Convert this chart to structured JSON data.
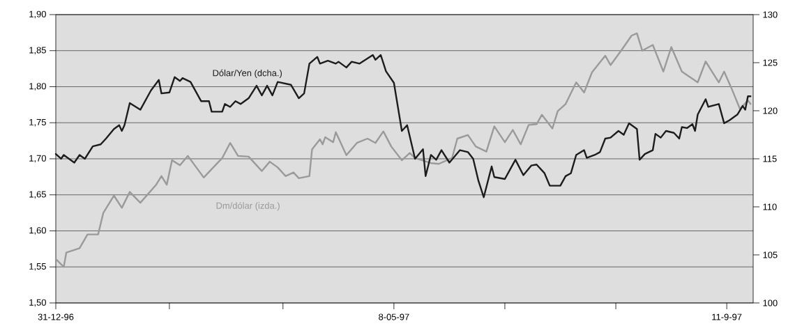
{
  "chart_data": {
    "type": "line",
    "xlim": [
      "1996-12-31",
      "1997-09-21"
    ],
    "xticks": [
      {
        "value": "1996-12-31",
        "label": "31-12-96"
      },
      {
        "value": "1997-02-12",
        "label": null
      },
      {
        "value": "1997-03-27",
        "label": null
      },
      {
        "value": "1997-05-08",
        "label": "8-05-97"
      },
      {
        "value": "1997-06-19",
        "label": null
      },
      {
        "value": "1997-07-31",
        "label": null
      },
      {
        "value": "1997-09-11",
        "label": "11-9-97"
      }
    ],
    "ylim": [
      1.5,
      1.9
    ],
    "yticks": [
      {
        "value": 1.5,
        "label": "1,50"
      },
      {
        "value": 1.55,
        "label": "1,55"
      },
      {
        "value": 1.6,
        "label": "1,60"
      },
      {
        "value": 1.65,
        "label": "1,65"
      },
      {
        "value": 1.7,
        "label": "1,70"
      },
      {
        "value": 1.75,
        "label": "1,75"
      },
      {
        "value": 1.8,
        "label": "1,80"
      },
      {
        "value": 1.85,
        "label": "1,85"
      },
      {
        "value": 1.9,
        "label": "1,90"
      }
    ],
    "y2lim": [
      100,
      130
    ],
    "y2ticks": [
      100,
      105,
      110,
      115,
      120,
      125,
      130
    ],
    "grid": "y",
    "line_style": "solid",
    "series": [
      {
        "name": "Dm/dólar (izda.)",
        "color": "#9a9a9a",
        "x": [
          "1996-12-31",
          "1997-01-03",
          "1997-01-04",
          "1997-01-09",
          "1997-01-12",
          "1997-01-16",
          "1997-01-18",
          "1997-01-22",
          "1997-01-25",
          "1997-01-28",
          "1997-02-01",
          "1997-02-07",
          "1997-02-09",
          "1997-02-11",
          "1997-02-13",
          "1997-02-16",
          "1997-02-19",
          "1997-02-25",
          "1997-03-04",
          "1997-03-07",
          "1997-03-10",
          "1997-03-14",
          "1997-03-19",
          "1997-03-22",
          "1997-03-25",
          "1997-03-28",
          "1997-03-31",
          "1997-04-02",
          "1997-04-06",
          "1997-04-07",
          "1997-04-10",
          "1997-04-11",
          "1997-04-12",
          "1997-04-15",
          "1997-04-16",
          "1997-04-20",
          "1997-04-24",
          "1997-04-28",
          "1997-05-01",
          "1997-05-04",
          "1997-05-07",
          "1997-05-11",
          "1997-05-14",
          "1997-05-16",
          "1997-05-22",
          "1997-05-25",
          "1997-05-30",
          "1997-06-01",
          "1997-06-05",
          "1997-06-08",
          "1997-06-12",
          "1997-06-15",
          "1997-06-19",
          "1997-06-22",
          "1997-06-25",
          "1997-06-28",
          "1997-07-01",
          "1997-07-03",
          "1997-07-07",
          "1997-07-09",
          "1997-07-12",
          "1997-07-16",
          "1997-07-19",
          "1997-07-22",
          "1997-07-27",
          "1997-07-29",
          "1997-08-02",
          "1997-08-06",
          "1997-08-08",
          "1997-08-10",
          "1997-08-14",
          "1997-08-18",
          "1997-08-21",
          "1997-08-25",
          "1997-08-31",
          "1997-09-03",
          "1997-09-08",
          "1997-09-10",
          "1997-09-13",
          "1997-09-16",
          "1997-09-19",
          "1997-09-20"
        ],
        "values": [
          1.561,
          1.55,
          1.57,
          1.576,
          1.595,
          1.595,
          1.625,
          1.649,
          1.632,
          1.654,
          1.639,
          1.664,
          1.676,
          1.664,
          1.698,
          1.691,
          1.704,
          1.674,
          1.701,
          1.722,
          1.704,
          1.703,
          1.683,
          1.696,
          1.688,
          1.676,
          1.681,
          1.673,
          1.676,
          1.713,
          1.727,
          1.72,
          1.73,
          1.723,
          1.737,
          1.705,
          1.722,
          1.728,
          1.722,
          1.738,
          1.717,
          1.698,
          1.708,
          1.701,
          1.694,
          1.693,
          1.701,
          1.728,
          1.733,
          1.717,
          1.71,
          1.745,
          1.723,
          1.74,
          1.72,
          1.747,
          1.748,
          1.761,
          1.742,
          1.766,
          1.776,
          1.806,
          1.792,
          1.82,
          1.843,
          1.83,
          1.85,
          1.871,
          1.874,
          1.85,
          1.858,
          1.821,
          1.855,
          1.821,
          1.806,
          1.835,
          1.806,
          1.821,
          1.796,
          1.769,
          1.781,
          1.776
        ]
      },
      {
        "name": "Dólar/Yen (dcha.)",
        "color": "#1c1c1c",
        "axis": "y2",
        "x": [
          "1996-12-31",
          "1997-01-02",
          "1997-01-03",
          "1997-01-07",
          "1997-01-09",
          "1997-01-11",
          "1997-01-14",
          "1997-01-17",
          "1997-01-19",
          "1997-01-22",
          "1997-01-24",
          "1997-01-25",
          "1997-01-26",
          "1997-01-28",
          "1997-02-01",
          "1997-02-05",
          "1997-02-08",
          "1997-02-09",
          "1997-02-12",
          "1997-02-14",
          "1997-02-16",
          "1997-02-17",
          "1997-02-20",
          "1997-02-24",
          "1997-02-27",
          "1997-02-28",
          "1997-03-04",
          "1997-03-05",
          "1997-03-07",
          "1997-03-09",
          "1997-03-11",
          "1997-03-14",
          "1997-03-17",
          "1997-03-19",
          "1997-03-21",
          "1997-03-23",
          "1997-03-25",
          "1997-03-30",
          "1997-04-02",
          "1997-04-04",
          "1997-04-06",
          "1997-04-09",
          "1997-04-10",
          "1997-04-13",
          "1997-04-16",
          "1997-04-17",
          "1997-04-20",
          "1997-04-22",
          "1997-04-25",
          "1997-04-30",
          "1997-05-01",
          "1997-05-03",
          "1997-05-05",
          "1997-05-08",
          "1997-05-11",
          "1997-05-13",
          "1997-05-16",
          "1997-05-19",
          "1997-05-20",
          "1997-05-22",
          "1997-05-24",
          "1997-05-26",
          "1997-05-29",
          "1997-06-02",
          "1997-06-05",
          "1997-06-07",
          "1997-06-09",
          "1997-06-11",
          "1997-06-14",
          "1997-06-15",
          "1997-06-19",
          "1997-06-23",
          "1997-06-26",
          "1997-06-29",
          "1997-07-01",
          "1997-07-04",
          "1997-07-06",
          "1997-07-10",
          "1997-07-12",
          "1997-07-14",
          "1997-07-16",
          "1997-07-19",
          "1997-07-20",
          "1997-07-23",
          "1997-07-25",
          "1997-07-27",
          "1997-07-29",
          "1997-08-01",
          "1997-08-03",
          "1997-08-05",
          "1997-08-08",
          "1997-08-09",
          "1997-08-11",
          "1997-08-14",
          "1997-08-15",
          "1997-08-17",
          "1997-08-19",
          "1997-08-22",
          "1997-08-24",
          "1997-08-25",
          "1997-08-27",
          "1997-08-29",
          "1997-08-30",
          "1997-08-31",
          "1997-09-03",
          "1997-09-04",
          "1997-09-08",
          "1997-09-10",
          "1997-09-12",
          "1997-09-15",
          "1997-09-17",
          "1997-09-18",
          "1997-09-19",
          "1997-09-20"
        ],
        "values": [
          115.5,
          115.0,
          115.4,
          114.6,
          115.4,
          115.0,
          116.3,
          116.5,
          117.1,
          118.1,
          118.5,
          117.9,
          118.5,
          120.8,
          120.1,
          122.1,
          123.2,
          121.8,
          121.9,
          123.5,
          123.1,
          123.4,
          123.0,
          121.0,
          121.0,
          119.9,
          119.9,
          120.7,
          120.4,
          121.0,
          120.7,
          121.3,
          122.6,
          121.6,
          122.6,
          121.6,
          123.0,
          122.7,
          121.3,
          121.8,
          124.9,
          125.6,
          124.9,
          125.2,
          124.9,
          125.1,
          124.5,
          125.1,
          124.9,
          125.8,
          125.3,
          125.8,
          124.1,
          122.9,
          117.9,
          118.5,
          115.0,
          116.0,
          113.2,
          115.4,
          114.9,
          115.9,
          114.6,
          115.9,
          115.7,
          115.0,
          112.7,
          111.0,
          114.2,
          113.1,
          112.9,
          114.9,
          113.3,
          114.3,
          114.4,
          113.5,
          112.2,
          112.2,
          113.2,
          113.5,
          115.4,
          115.9,
          115.1,
          115.4,
          115.7,
          117.1,
          117.2,
          117.9,
          117.5,
          118.7,
          118.1,
          114.9,
          115.5,
          115.9,
          117.6,
          117.2,
          117.9,
          117.7,
          117.1,
          118.3,
          118.2,
          118.6,
          117.9,
          119.6,
          121.2,
          120.4,
          120.7,
          118.7,
          119.0,
          119.6,
          120.5,
          120.1,
          121.5,
          121.5
        ]
      }
    ]
  }
}
